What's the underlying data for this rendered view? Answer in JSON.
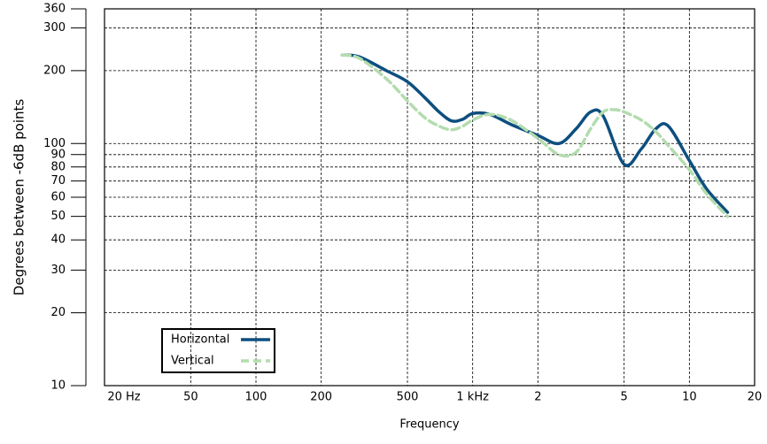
{
  "chart_data": {
    "type": "line",
    "xlabel": "Frequency",
    "ylabel": "Degrees between -6dB points",
    "xscale": "log",
    "yscale": "log",
    "grid": true,
    "legend": "lower left",
    "xlim": [
      20,
      20000
    ],
    "ylim": [
      10,
      360
    ],
    "xticks": [
      {
        "value": 20,
        "label": "20 Hz"
      },
      50,
      100,
      200,
      500,
      {
        "value": 1000,
        "label": "1 kHz"
      },
      {
        "value": 2000,
        "label": "2"
      },
      {
        "value": 5000,
        "label": "5"
      },
      {
        "value": 10000,
        "label": "10"
      },
      {
        "value": 20000,
        "label": "20"
      }
    ],
    "yticks": [
      10,
      20,
      30,
      40,
      50,
      60,
      70,
      80,
      90,
      100,
      200,
      300,
      360
    ],
    "series": [
      {
        "name": "Horizontal",
        "color": "#0d4f7f",
        "style": "solid",
        "x": [
          250,
          300,
          400,
          500,
          600,
          700,
          800,
          900,
          1000,
          1200,
          1500,
          2000,
          2500,
          3000,
          3500,
          4000,
          5000,
          6000,
          7000,
          8000,
          10000,
          12000,
          15000
        ],
        "values": [
          232,
          228,
          200,
          180,
          155,
          135,
          124,
          126,
          133,
          132,
          120,
          108,
          100,
          115,
          135,
          130,
          82,
          95,
          115,
          118,
          85,
          65,
          52
        ]
      },
      {
        "name": "Vertical",
        "color": "#b3dcae",
        "style": "dashed",
        "x": [
          250,
          300,
          400,
          500,
          600,
          700,
          800,
          900,
          1000,
          1200,
          1500,
          2000,
          2500,
          3000,
          3500,
          4000,
          4500,
          5000,
          6000,
          7000,
          8000,
          10000,
          12000,
          15000
        ],
        "values": [
          232,
          225,
          185,
          150,
          128,
          118,
          114,
          118,
          125,
          132,
          125,
          105,
          90,
          92,
          115,
          135,
          138,
          135,
          125,
          112,
          98,
          78,
          62,
          50
        ]
      }
    ]
  }
}
